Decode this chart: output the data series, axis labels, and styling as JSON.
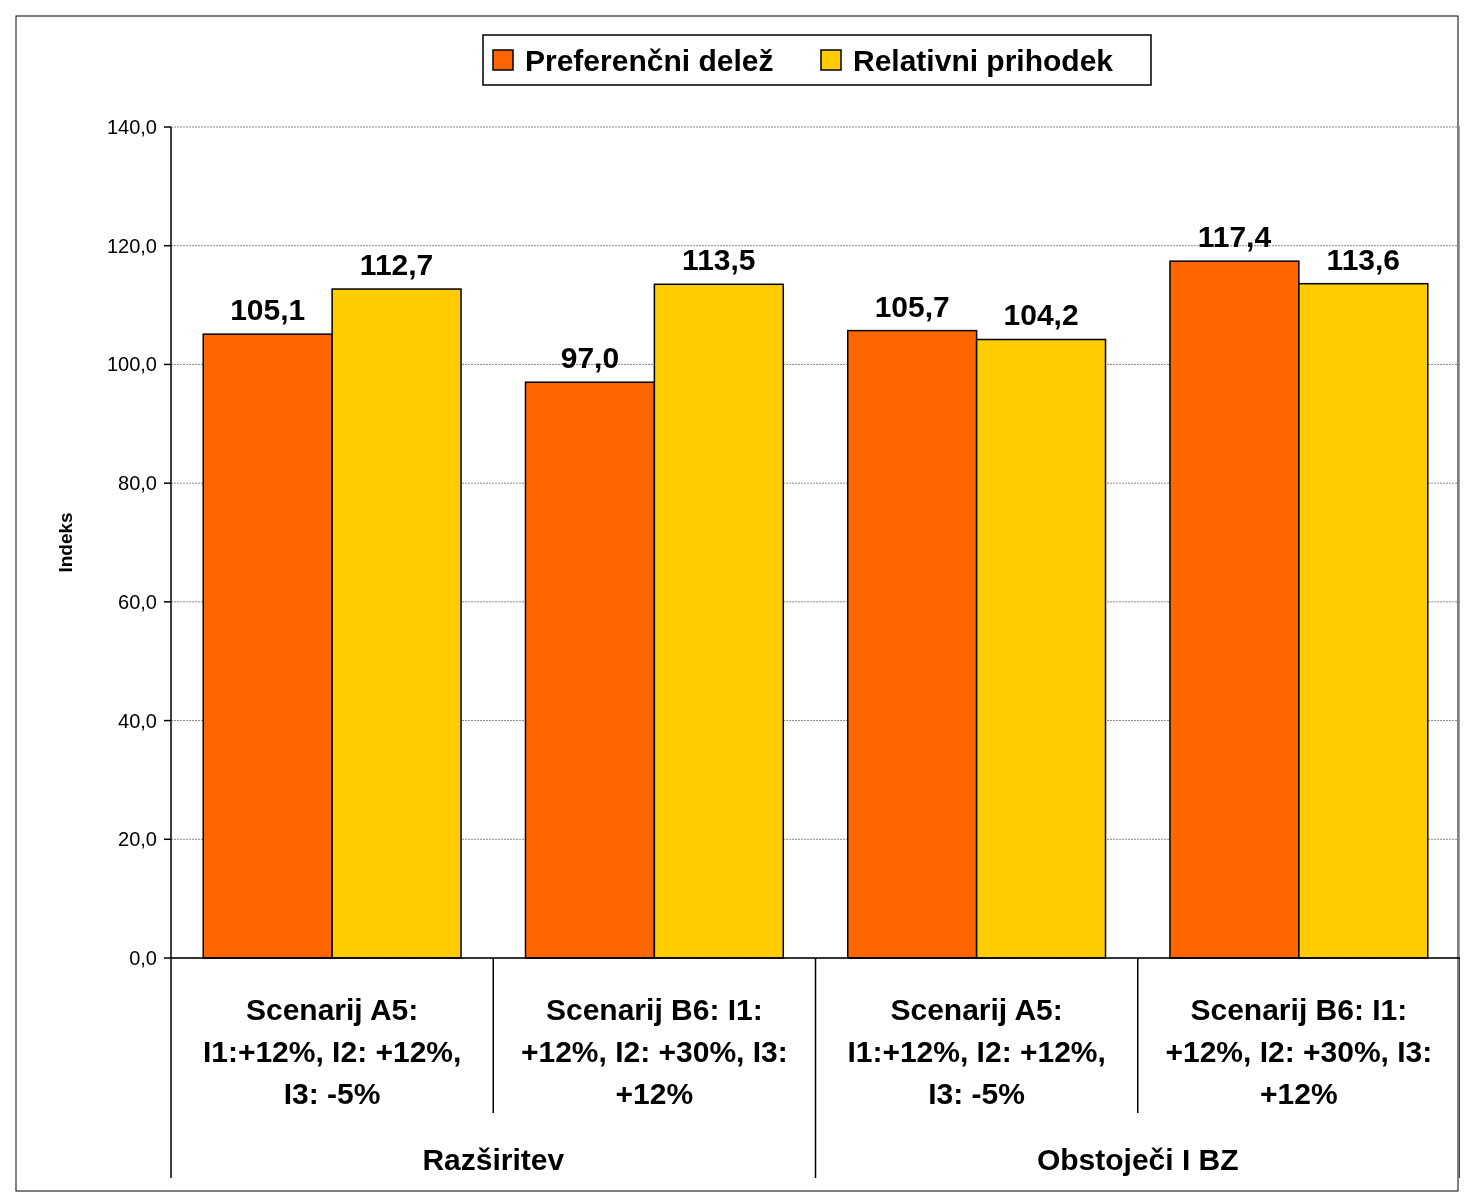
{
  "chart_data": {
    "type": "bar",
    "ylabel": "Indeks",
    "categories": [
      "Scenarij A5: I1:+12%, I2: +12%, I3: -5%",
      "Scenarij B6: I1: +12%, I2: +30%, I3: +12%",
      "Scenarij A5: I1:+12%, I2: +12%, I3: -5%",
      "Scenarij B6: I1: +12%, I2: +30%, I3: +12%"
    ],
    "series": [
      {
        "name": "Preferenčni delež",
        "color": "#ff6600",
        "values": [
          105.1,
          97.0,
          105.7,
          117.4
        ],
        "value_labels": [
          "105,1",
          "97,0",
          "105,7",
          "117,4"
        ]
      },
      {
        "name": "Relativni prihodek",
        "color": "#ffcc00",
        "values": [
          112.7,
          113.5,
          104.2,
          113.6
        ],
        "value_labels": [
          "112,7",
          "113,5",
          "104,2",
          "113,6"
        ]
      }
    ],
    "ylim": [
      0,
      140
    ],
    "yticks": [
      {
        "value": 0,
        "label": "0,0"
      },
      {
        "value": 20,
        "label": "20,0"
      },
      {
        "value": 40,
        "label": "40,0"
      },
      {
        "value": 60,
        "label": "60,0"
      },
      {
        "value": 80,
        "label": "80,0"
      },
      {
        "value": 100,
        "label": "100,0"
      },
      {
        "value": 120,
        "label": "120,0"
      },
      {
        "value": 140,
        "label": "140,0"
      }
    ],
    "grid": "y",
    "legend": "top",
    "annotations": [
      "Razširitev",
      "Obstoječi I BZ"
    ]
  }
}
